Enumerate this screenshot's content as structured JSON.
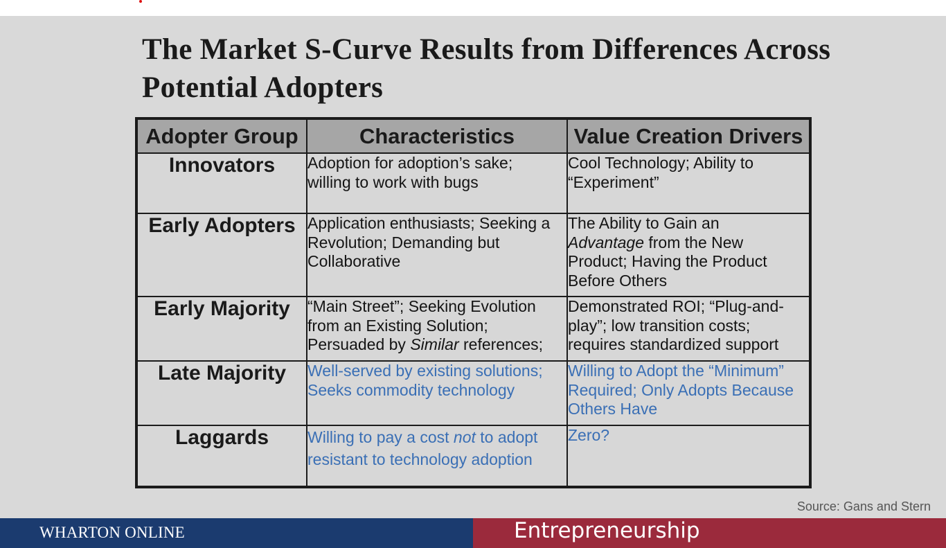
{
  "title": "The Market S-Curve Results from Differences Across Potential Adopters",
  "table": {
    "headers": [
      "Adopter Group",
      "Characteristics",
      "Value Creation Drivers"
    ],
    "rows": [
      {
        "group": "Innovators",
        "characteristics": [
          "Adoption for adoption’s sake;",
          "willing to work with bugs"
        ],
        "drivers": [
          "Cool Technology; Ability to",
          "“Experiment”"
        ]
      },
      {
        "group": "Early Adopters",
        "characteristics": [
          "Application enthusiasts; Seeking a",
          "Revolution; Demanding but",
          "Collaborative"
        ],
        "drivers_pre": "The Ability to Gain an",
        "drivers_em": "Advantage",
        "drivers_post": " from the  New",
        "drivers_rest": [
          "Product; Having the Product",
          "Before Others"
        ]
      },
      {
        "group": "Early Majority",
        "characteristics": [
          "“Main Street”; Seeking Evolution",
          "from an Existing Solution;"
        ],
        "characteristics_pre": "Persuaded by ",
        "characteristics_em": "Similar",
        "characteristics_post": " references;",
        "drivers": [
          "Demonstrated ROI; “Plug-and-",
          "play”; low transition costs;",
          "requires standardized support"
        ]
      },
      {
        "group": "Late Majority",
        "characteristics": [
          "Well-served by existing solutions;",
          "Seeks commodity technology"
        ],
        "drivers": [
          "Willing to Adopt the “Minimum”",
          "Required; Only Adopts Because",
          "Others Have"
        ]
      },
      {
        "group": "Laggards",
        "characteristics_pre": "Willing to pay a cost ",
        "characteristics_em": "not",
        "characteristics_post": " to adopt",
        "characteristics_line2": "resistant to technology adoption",
        "drivers": [
          "Zero?"
        ]
      }
    ]
  },
  "source": "Source: Gans and Stern",
  "footer": {
    "left": "WHARTON ONLINE",
    "right": "Entrepreneurship"
  },
  "colors": {
    "background": "#d9d9d9",
    "header_fill": "#a6a6a6",
    "blue_text": "#3a6fb5",
    "footer_blue": "#1b3b6f",
    "footer_red": "#9b2a3c"
  }
}
